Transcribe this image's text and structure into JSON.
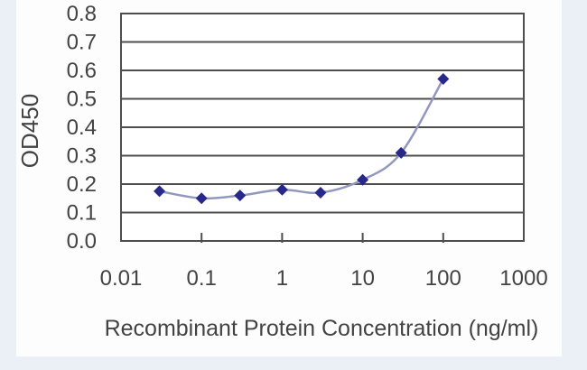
{
  "figure": {
    "page_background": "#eaf0f6",
    "card_background": "#fdfdfe"
  },
  "chart_data": {
    "type": "line",
    "title": "",
    "xlabel": "Recombinant Protein Concentration (ng/ml)",
    "ylabel": "OD450",
    "x_scale": "log",
    "xlim": [
      0.01,
      1000
    ],
    "ylim": [
      0.0,
      0.8
    ],
    "x_tick_labels": [
      "0.01",
      "0.1",
      "1",
      "10",
      "100",
      "1000"
    ],
    "y_tick_labels": [
      "0.0",
      "0.1",
      "0.2",
      "0.3",
      "0.4",
      "0.5",
      "0.6",
      "0.7",
      "0.8"
    ],
    "grid": "horizontal",
    "legend": "none",
    "grid_color": "#4e4e4e",
    "text_color": "#434343",
    "plot_background": "#ffffff",
    "series": [
      {
        "name": "OD450",
        "x": [
          0.03,
          0.1,
          0.3,
          1,
          3,
          10,
          30,
          100
        ],
        "y": [
          0.175,
          0.15,
          0.16,
          0.18,
          0.17,
          0.215,
          0.31,
          0.57
        ],
        "marker": "diamond",
        "line_style": "smooth",
        "line_color": "#9298bd",
        "marker_color": "#28288a"
      }
    ]
  }
}
